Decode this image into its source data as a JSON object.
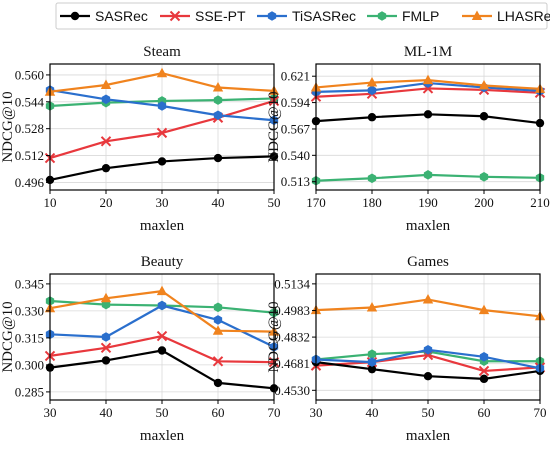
{
  "legend": [
    {
      "name": "SASRec",
      "color": "#000000",
      "marker": "circle"
    },
    {
      "name": "SSE-PT",
      "color": "#e8383d",
      "marker": "x"
    },
    {
      "name": "TiSASRec",
      "color": "#2a6fcd",
      "marker": "hexagon"
    },
    {
      "name": "FMLP",
      "color": "#3bb273",
      "marker": "hexagon"
    },
    {
      "name": "LHASRec",
      "color": "#f0831e",
      "marker": "triangle"
    }
  ],
  "chart_data": [
    {
      "type": "line",
      "title": "Steam",
      "xlabel": "maxlen",
      "ylabel": "NDCG@10",
      "x": [
        10,
        20,
        30,
        40,
        50
      ],
      "xticks": [
        "10",
        "20",
        "30",
        "40",
        "50"
      ],
      "yticks": [
        "0.496",
        "0.512",
        "0.528",
        "0.544",
        "0.560"
      ],
      "yticks_values": [
        0.496,
        0.512,
        0.528,
        0.544,
        0.56
      ],
      "xlim": [
        10,
        50
      ],
      "ylim": [
        0.4915,
        0.5665
      ],
      "grid": true,
      "series": [
        {
          "name": "SASRec",
          "values": [
            0.4975,
            0.5045,
            0.5085,
            0.5105,
            0.5115
          ]
        },
        {
          "name": "SSE-PT",
          "values": [
            0.5105,
            0.5205,
            0.5255,
            0.5345,
            0.5445
          ]
        },
        {
          "name": "TiSASRec",
          "values": [
            0.551,
            0.5455,
            0.5415,
            0.536,
            0.533
          ]
        },
        {
          "name": "FMLP",
          "values": [
            0.5415,
            0.5435,
            0.5445,
            0.545,
            0.546
          ]
        },
        {
          "name": "LHASRec",
          "values": [
            0.55,
            0.554,
            0.561,
            0.5525,
            0.5505
          ]
        }
      ]
    },
    {
      "type": "line",
      "title": "ML-1M",
      "xlabel": "maxlen",
      "ylabel": "NDCG@10",
      "x": [
        170,
        180,
        190,
        200,
        210
      ],
      "xticks": [
        "170",
        "180",
        "190",
        "200",
        "210"
      ],
      "yticks": [
        "0.513",
        "0.540",
        "0.567",
        "0.594",
        "0.621"
      ],
      "yticks_values": [
        0.513,
        0.54,
        0.567,
        0.594,
        0.621
      ],
      "xlim": [
        170,
        210
      ],
      "ylim": [
        0.5045,
        0.6335
      ],
      "grid": true,
      "series": [
        {
          "name": "SASRec",
          "values": [
            0.575,
            0.579,
            0.582,
            0.58,
            0.573
          ]
        },
        {
          "name": "SSE-PT",
          "values": [
            0.6,
            0.603,
            0.6085,
            0.607,
            0.604
          ]
        },
        {
          "name": "TiSASRec",
          "values": [
            0.605,
            0.6065,
            0.614,
            0.6095,
            0.606
          ]
        },
        {
          "name": "FMLP",
          "values": [
            0.514,
            0.5165,
            0.52,
            0.518,
            0.517
          ]
        },
        {
          "name": "LHASRec",
          "values": [
            0.6095,
            0.6145,
            0.617,
            0.6115,
            0.608
          ]
        }
      ]
    },
    {
      "type": "line",
      "title": "Beauty",
      "xlabel": "maxlen",
      "ylabel": "NDCG@10",
      "x": [
        30,
        40,
        50,
        60,
        70
      ],
      "xticks": [
        "30",
        "40",
        "50",
        "60",
        "70"
      ],
      "yticks": [
        "0.285",
        "0.300",
        "0.315",
        "0.330",
        "0.345"
      ],
      "yticks_values": [
        0.285,
        0.3,
        0.315,
        0.33,
        0.345
      ],
      "xlim": [
        30,
        70
      ],
      "ylim": [
        0.2805,
        0.3505
      ],
      "grid": true,
      "series": [
        {
          "name": "SASRec",
          "values": [
            0.2985,
            0.3025,
            0.308,
            0.29,
            0.287
          ]
        },
        {
          "name": "SSE-PT",
          "values": [
            0.305,
            0.3095,
            0.316,
            0.302,
            0.3015
          ]
        },
        {
          "name": "TiSASRec",
          "values": [
            0.317,
            0.3155,
            0.333,
            0.325,
            0.31
          ]
        },
        {
          "name": "FMLP",
          "values": [
            0.3355,
            0.3335,
            0.333,
            0.332,
            0.329
          ]
        },
        {
          "name": "LHASRec",
          "values": [
            0.3315,
            0.337,
            0.341,
            0.319,
            0.3185
          ]
        }
      ]
    },
    {
      "type": "line",
      "title": "Games",
      "xlabel": "maxlen",
      "ylabel": "NDCG@10",
      "x": [
        30,
        40,
        50,
        60,
        70
      ],
      "xticks": [
        "30",
        "40",
        "50",
        "60",
        "70"
      ],
      "yticks": [
        "0.4530",
        "0.4681",
        "0.4832",
        "0.4983",
        "0.5134"
      ],
      "yticks_values": [
        0.453,
        0.4681,
        0.4832,
        0.4983,
        0.5134
      ],
      "xlim": [
        30,
        70
      ],
      "ylim": [
        0.4475,
        0.519
      ],
      "grid": true,
      "series": [
        {
          "name": "SASRec",
          "values": [
            0.469,
            0.465,
            0.461,
            0.4595,
            0.464
          ]
        },
        {
          "name": "SSE-PT",
          "values": [
            0.467,
            0.469,
            0.473,
            0.464,
            0.466
          ]
        },
        {
          "name": "TiSASRec",
          "values": [
            0.4705,
            0.469,
            0.476,
            0.472,
            0.4655
          ]
        },
        {
          "name": "FMLP",
          "values": [
            0.4705,
            0.4735,
            0.475,
            0.4695,
            0.4695
          ]
        },
        {
          "name": "LHASRec",
          "values": [
            0.4985,
            0.5,
            0.5045,
            0.4985,
            0.495
          ]
        }
      ]
    }
  ]
}
